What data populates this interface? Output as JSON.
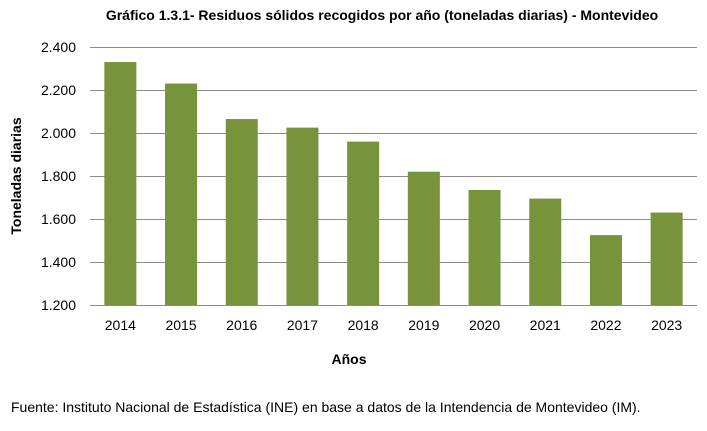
{
  "chart_data": {
    "type": "bar",
    "title": "Gráfico 1.3.1- Residuos sólidos recogidos por año (toneladas diarias) - Montevideo",
    "xlabel": "Años",
    "ylabel": "Toneladas diarias",
    "categories": [
      "2014",
      "2015",
      "2016",
      "2017",
      "2018",
      "2019",
      "2020",
      "2021",
      "2022",
      "2023"
    ],
    "values": [
      2330,
      2230,
      2065,
      2025,
      1960,
      1820,
      1735,
      1695,
      1525,
      1630
    ],
    "ylim": [
      1200,
      2400
    ],
    "yticks": [
      1200,
      1400,
      1600,
      1800,
      2000,
      2200,
      2400
    ],
    "ytick_labels": [
      "1.200",
      "1.400",
      "1.600",
      "1.800",
      "2.000",
      "2.200",
      "2.400"
    ],
    "grid": true,
    "legend": "none",
    "bar_color": "#77933C"
  },
  "source": "Fuente: Instituto Nacional de Estadística (INE) en base a datos de la Intendencia de Montevideo (IM)."
}
